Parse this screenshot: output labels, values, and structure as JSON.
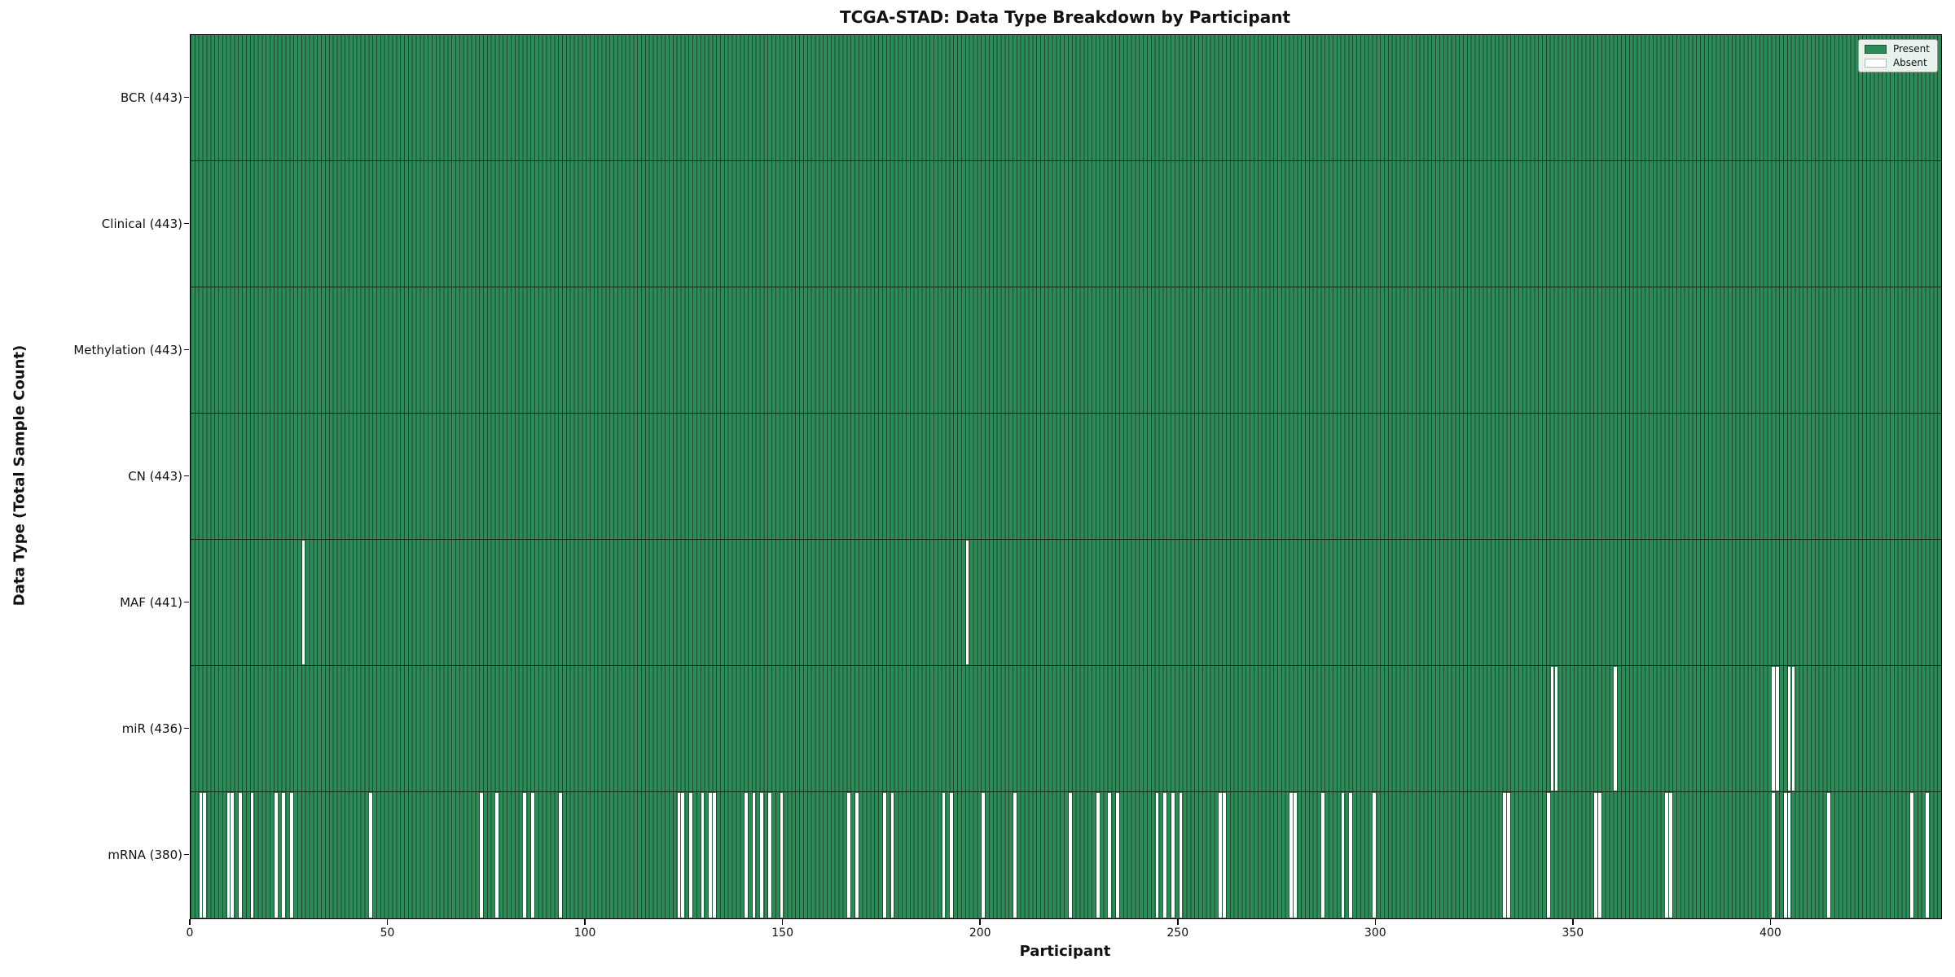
{
  "figure": {
    "title": "TCGA-STAD: Data Type Breakdown by Participant",
    "xlabel": "Participant",
    "ylabel": "Data Type (Total Sample Count)",
    "legend": {
      "present_label": "Present",
      "absent_label": "Absent"
    },
    "colors": {
      "present": "#2e8b57",
      "present_edge": "#1b4a30",
      "absent": "#ffffff",
      "row_divider": "#14281c",
      "spine": "#000000"
    }
  },
  "chart_data": {
    "type": "heatmap",
    "title": "TCGA-STAD: Data Type Breakdown by Participant",
    "xlabel": "Participant",
    "ylabel": "Data Type (Total Sample Count)",
    "legend_entries": [
      "Present",
      "Absent"
    ],
    "legend_position": "upper right",
    "x_axis": {
      "range": [
        0,
        443
      ],
      "ticks": [
        0,
        50,
        100,
        150,
        200,
        250,
        300,
        350,
        400
      ]
    },
    "n_participants": 443,
    "cell_states": {
      "present": 1,
      "absent": 0
    },
    "rows": [
      {
        "label": "BCR (443)",
        "data_type": "BCR",
        "total_samples": 443,
        "absent_participants": []
      },
      {
        "label": "Clinical (443)",
        "data_type": "Clinical",
        "total_samples": 443,
        "absent_participants": []
      },
      {
        "label": "Methylation (443)",
        "data_type": "Methylation",
        "total_samples": 443,
        "absent_participants": []
      },
      {
        "label": "CN (443)",
        "data_type": "CN",
        "total_samples": 443,
        "absent_participants": []
      },
      {
        "label": "MAF (441)",
        "data_type": "MAF",
        "total_samples": 441,
        "absent_participants": [
          28,
          196
        ]
      },
      {
        "label": "miR (436)",
        "data_type": "miR",
        "total_samples": 436,
        "absent_participants": [
          344,
          345,
          360,
          400,
          401,
          404,
          405
        ]
      },
      {
        "label": "mRNA (380)",
        "data_type": "mRNA",
        "total_samples": 380,
        "absent_participants": [
          2,
          3,
          9,
          10,
          12,
          15,
          21,
          23,
          25,
          45,
          73,
          77,
          84,
          86,
          93,
          123,
          124,
          126,
          129,
          131,
          132,
          140,
          142,
          144,
          146,
          149,
          166,
          168,
          175,
          177,
          190,
          192,
          200,
          208,
          222,
          229,
          232,
          234,
          244,
          246,
          248,
          250,
          260,
          261,
          278,
          279,
          286,
          291,
          293,
          299,
          332,
          333,
          343,
          355,
          356,
          373,
          374,
          400,
          403,
          404,
          414,
          435,
          439
        ]
      }
    ]
  }
}
